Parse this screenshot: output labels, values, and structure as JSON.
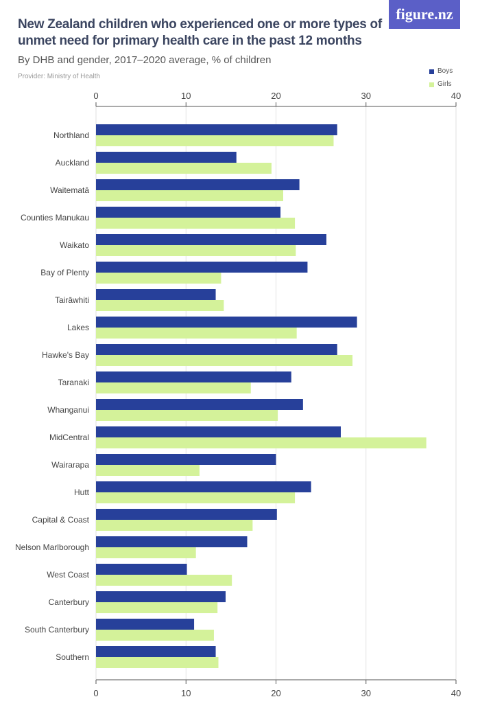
{
  "header": {
    "title": "New Zealand children who experienced one or more types of unmet need for primary health care in the past 12 months",
    "subtitle": "By DHB and gender, 2017–2020 average, % of children",
    "provider": "Provider: Ministry of Health",
    "logo": "figure.nz"
  },
  "chart_data": {
    "type": "bar",
    "orientation": "horizontal",
    "title": "New Zealand children who experienced one or more types of unmet need for primary health care in the past 12 months",
    "subtitle": "By DHB and gender, 2017–2020 average, % of children",
    "xlim": [
      0,
      40
    ],
    "ticks": [
      0,
      10,
      20,
      30,
      40
    ],
    "grid": true,
    "legend_position": "top-right",
    "categories": [
      "Northland",
      "Auckland",
      "Waitematā",
      "Counties Manukau",
      "Waikato",
      "Bay of Plenty",
      "Tairāwhiti",
      "Lakes",
      "Hawke's Bay",
      "Taranaki",
      "Whanganui",
      "MidCentral",
      "Wairarapa",
      "Hutt",
      "Capital & Coast",
      "Nelson Marlborough",
      "West Coast",
      "Canterbury",
      "South Canterbury",
      "Southern"
    ],
    "series": [
      {
        "name": "Boys",
        "color": "#27409a",
        "values": [
          26.8,
          15.6,
          22.6,
          20.5,
          25.6,
          23.5,
          13.3,
          29.0,
          26.8,
          21.7,
          23.0,
          27.2,
          20.0,
          23.9,
          20.1,
          16.8,
          10.1,
          14.4,
          10.9,
          13.3
        ]
      },
      {
        "name": "Girls",
        "color": "#d4f29a",
        "values": [
          26.4,
          19.5,
          20.8,
          22.1,
          22.2,
          13.9,
          14.2,
          22.3,
          28.5,
          17.2,
          20.2,
          36.7,
          11.5,
          22.1,
          17.4,
          11.1,
          15.1,
          13.5,
          13.1,
          13.6
        ]
      }
    ]
  }
}
